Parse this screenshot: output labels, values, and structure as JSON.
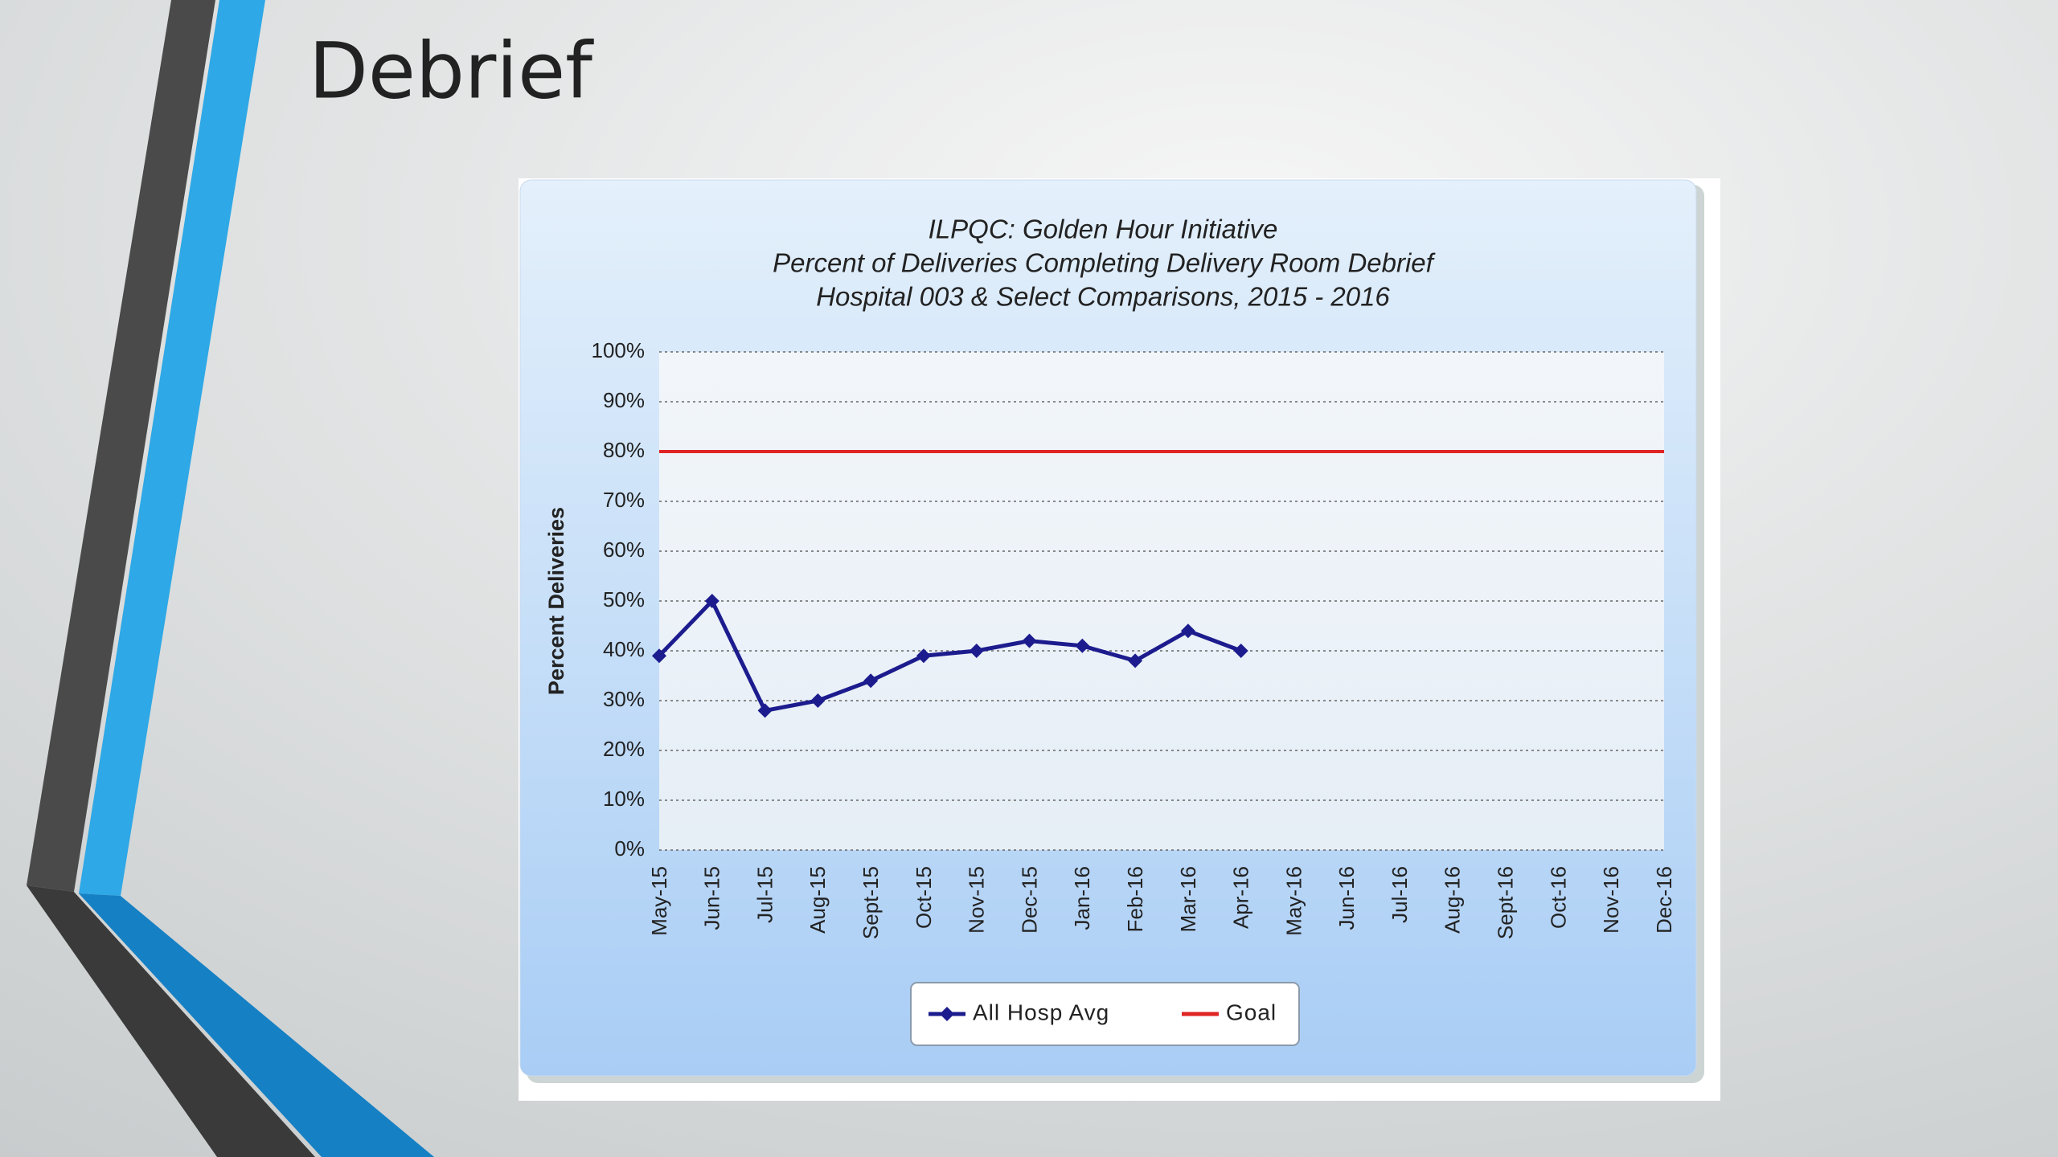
{
  "slide_title": "Debrief",
  "chart_data": {
    "type": "line",
    "title": "ILPQC: Golden Hour Initiative",
    "subtitle": [
      "Percent of Deliveries Completing Delivery Room Debrief",
      "Hospital 003 & Select Comparisons, 2015 - 2016"
    ],
    "ylabel": "Percent Deliveries",
    "categories": [
      "May-15",
      "Jun-15",
      "Jul-15",
      "Aug-15",
      "Sept-15",
      "Oct-15",
      "Nov-15",
      "Dec-15",
      "Jan-16",
      "Feb-16",
      "Mar-16",
      "Apr-16",
      "May-16",
      "Jun-16",
      "Jul-16",
      "Aug-16",
      "Sept-16",
      "Oct-16",
      "Nov-16",
      "Dec-16"
    ],
    "series": [
      {
        "name": "All Hosp Avg",
        "color": "#1c1c8e",
        "marker": "diamond",
        "values": [
          39,
          50,
          28,
          30,
          34,
          39,
          40,
          42,
          41,
          38,
          44,
          40,
          null,
          null,
          null,
          null,
          null,
          null,
          null,
          null
        ]
      },
      {
        "name": "Goal",
        "color": "#e02424",
        "marker": "none",
        "values": [
          80,
          80,
          80,
          80,
          80,
          80,
          80,
          80,
          80,
          80,
          80,
          80,
          80,
          80,
          80,
          80,
          80,
          80,
          80,
          80
        ]
      }
    ],
    "ylim": [
      0,
      100
    ],
    "yticks": [
      {
        "value": 0,
        "label": "0%"
      },
      {
        "value": 10,
        "label": "10%"
      },
      {
        "value": 20,
        "label": "20%"
      },
      {
        "value": 30,
        "label": "30%"
      },
      {
        "value": 40,
        "label": "40%"
      },
      {
        "value": 50,
        "label": "50%"
      },
      {
        "value": 60,
        "label": "60%"
      },
      {
        "value": 70,
        "label": "70%"
      },
      {
        "value": 80,
        "label": "80%"
      },
      {
        "value": 90,
        "label": "90%"
      },
      {
        "value": 100,
        "label": "100%"
      }
    ],
    "grid": true,
    "legend": "bottom"
  }
}
